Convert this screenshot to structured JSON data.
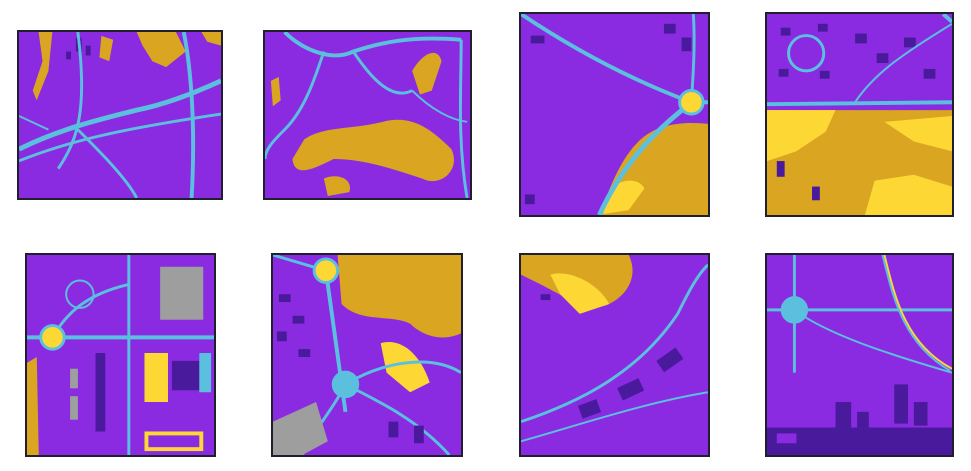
{
  "colors": {
    "background": "#8a2be2",
    "road": "#5bc0de",
    "water": "#daa520",
    "sand": "#fdd835",
    "building": "#4a1a9c",
    "plaza": "#9e9e9e",
    "border": "#1f1f2e"
  },
  "legend_classes": [
    "background",
    "road",
    "water",
    "sand",
    "building",
    "plaza"
  ],
  "grid": {
    "rows": 2,
    "columns": 4
  }
}
